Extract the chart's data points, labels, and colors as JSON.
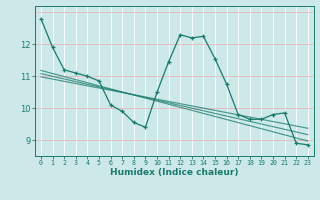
{
  "xlabel": "Humidex (Indice chaleur)",
  "x": [
    0,
    1,
    2,
    3,
    4,
    5,
    6,
    7,
    8,
    9,
    10,
    11,
    12,
    13,
    14,
    15,
    16,
    17,
    18,
    19,
    20,
    21,
    22,
    23
  ],
  "y_main": [
    12.8,
    11.9,
    11.2,
    11.1,
    11.0,
    10.85,
    10.1,
    9.9,
    9.55,
    9.4,
    10.5,
    11.45,
    12.3,
    12.2,
    12.25,
    11.55,
    10.75,
    9.8,
    9.65,
    9.65,
    9.8,
    9.85,
    8.9,
    8.85
  ],
  "background_color": "#cce8e8",
  "line_color": "#1a7a6e",
  "vgrid_color": "#ffffff",
  "hgrid_color": "#e8b8b8",
  "ylim": [
    8.5,
    13.2
  ],
  "xlim": [
    -0.5,
    23.5
  ],
  "yticks": [
    9,
    10,
    11,
    12
  ],
  "xtick_labels": [
    "0",
    "1",
    "2",
    "3",
    "4",
    "5",
    "6",
    "7",
    "8",
    "9",
    "10",
    "11",
    "12",
    "13",
    "14",
    "15",
    "16",
    "17",
    "18",
    "19",
    "20",
    "21",
    "22",
    "23"
  ],
  "regression_lines": [
    {
      "x0": 0,
      "y0": 11.18,
      "x1": 23,
      "y1": 8.97
    },
    {
      "x0": 0,
      "y0": 11.08,
      "x1": 23,
      "y1": 9.17
    },
    {
      "x0": 0,
      "y0": 10.98,
      "x1": 23,
      "y1": 9.37
    }
  ]
}
